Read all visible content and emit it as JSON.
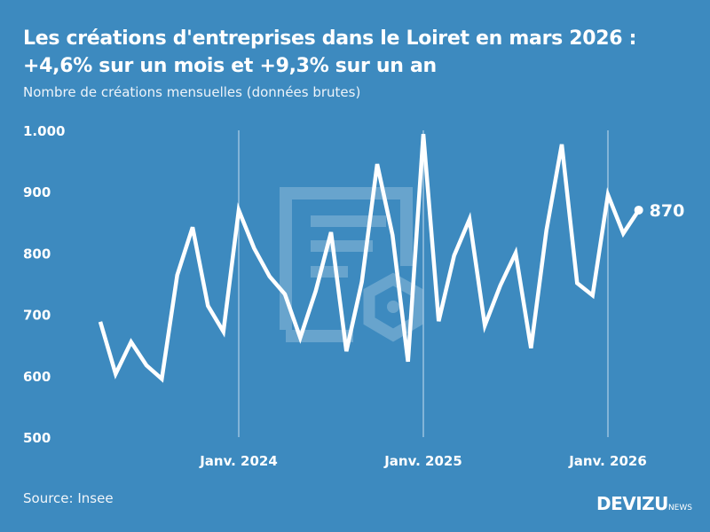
{
  "header": {
    "title_line1": "Les créations d'entreprises dans le Loiret en mars 2026 :",
    "title_line2": "+4,6% sur un mois et +9,3% sur un an",
    "subtitle": "Nombre de créations mensuelles (données brutes)"
  },
  "footer": {
    "source": "Source: Insee",
    "logo_main": "DEVIZU",
    "logo_suffix": "NEWS"
  },
  "colors": {
    "background": "#3d8abf",
    "line": "#ffffff"
  },
  "chart_data": {
    "type": "line",
    "title": "Les créations d'entreprises dans le Loiret en mars 2026 : +4,6% sur un mois et +9,3% sur un an",
    "subtitle": "Nombre de créations mensuelles (données brutes)",
    "xlabel": "",
    "ylabel": "",
    "ylim": [
      500,
      1000
    ],
    "yticks": [
      "500",
      "600",
      "700",
      "800",
      "900",
      "1.000"
    ],
    "ytick_values": [
      500,
      600,
      700,
      800,
      900,
      1000
    ],
    "xticks": [
      {
        "label": "Janv. 2024",
        "month": "2024-01"
      },
      {
        "label": "Janv. 2025",
        "month": "2025-01"
      },
      {
        "label": "Janv. 2026",
        "month": "2026-01"
      }
    ],
    "grid": "vertical lines at January",
    "x": [
      "2023-04",
      "2023-05",
      "2023-06",
      "2023-07",
      "2023-08",
      "2023-09",
      "2023-10",
      "2023-11",
      "2023-12",
      "2024-01",
      "2024-02",
      "2024-03",
      "2024-04",
      "2024-05",
      "2024-06",
      "2024-07",
      "2024-08",
      "2024-09",
      "2024-10",
      "2024-11",
      "2024-12",
      "2025-01",
      "2025-02",
      "2025-03",
      "2025-04",
      "2025-05",
      "2025-06",
      "2025-07",
      "2025-08",
      "2025-09",
      "2025-10",
      "2025-11",
      "2025-12",
      "2026-01",
      "2026-02",
      "2026-03"
    ],
    "values": [
      688,
      603,
      655,
      617,
      595,
      764,
      842,
      714,
      672,
      870,
      808,
      762,
      733,
      662,
      738,
      834,
      640,
      753,
      945,
      829,
      623,
      994,
      689,
      796,
      855,
      682,
      747,
      800,
      645,
      837,
      977,
      751,
      731,
      895,
      832,
      870
    ],
    "last_label": "870"
  }
}
